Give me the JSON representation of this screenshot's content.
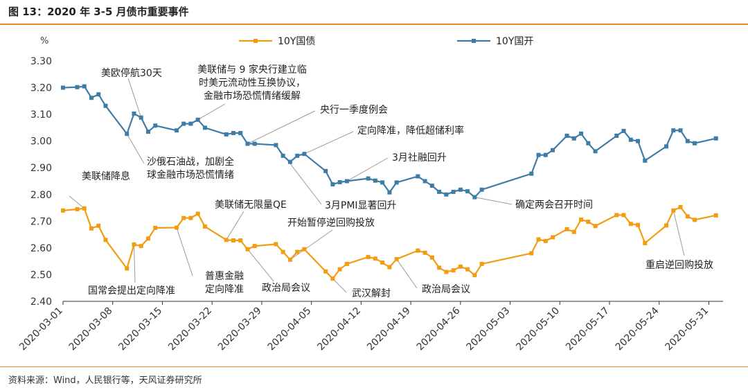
{
  "header": {
    "title": "图 13：2020 年 3-5 月债市重要事件"
  },
  "footer": {
    "source": "资料来源：Wind，人民银行等，天风证券研究所"
  },
  "chart_data": {
    "type": "line",
    "ylabel": "%",
    "ylim": [
      2.4,
      3.3
    ],
    "yticks": [
      "3.30",
      "3.20",
      "3.10",
      "3.00",
      "2.90",
      "2.80",
      "2.70",
      "2.60",
      "2.50",
      "2.40"
    ],
    "xlim": [
      "2020-03-01",
      "2020-06-02"
    ],
    "xticks": [
      "2020-03-01",
      "2020-03-08",
      "2020-03-15",
      "2020-03-22",
      "2020-03-29",
      "2020-04-05",
      "2020-04-12",
      "2020-04-19",
      "2020-04-26",
      "2020-05-03",
      "2020-05-10",
      "2020-05-17",
      "2020-05-24",
      "2020-05-31"
    ],
    "legend_position": "top",
    "series": [
      {
        "name": "10Y国债",
        "color": "#f39c12",
        "points": [
          [
            "2020-03-01",
            2.74
          ],
          [
            "2020-03-03",
            2.745
          ],
          [
            "2020-03-04",
            2.748
          ],
          [
            "2020-03-05",
            2.673
          ],
          [
            "2020-03-06",
            2.683
          ],
          [
            "2020-03-07",
            2.63
          ],
          [
            "2020-03-10",
            2.523
          ],
          [
            "2020-03-11",
            2.613
          ],
          [
            "2020-03-12",
            2.607
          ],
          [
            "2020-03-13",
            2.635
          ],
          [
            "2020-03-14",
            2.675
          ],
          [
            "2020-03-17",
            2.676
          ],
          [
            "2020-03-18",
            2.712
          ],
          [
            "2020-03-19",
            2.712
          ],
          [
            "2020-03-20",
            2.728
          ],
          [
            "2020-03-21",
            2.68
          ],
          [
            "2020-03-24",
            2.63
          ],
          [
            "2020-03-25",
            2.628
          ],
          [
            "2020-03-26",
            2.628
          ],
          [
            "2020-03-27",
            2.595
          ],
          [
            "2020-03-28",
            2.607
          ],
          [
            "2020-03-31",
            2.614
          ],
          [
            "2020-04-01",
            2.585
          ],
          [
            "2020-04-02",
            2.556
          ],
          [
            "2020-04-03",
            2.585
          ],
          [
            "2020-04-04",
            2.595
          ],
          [
            "2020-04-07",
            2.512
          ],
          [
            "2020-04-08",
            2.485
          ],
          [
            "2020-04-09",
            2.52
          ],
          [
            "2020-04-10",
            2.54
          ],
          [
            "2020-04-13",
            2.566
          ],
          [
            "2020-04-14",
            2.56
          ],
          [
            "2020-04-15",
            2.545
          ],
          [
            "2020-04-16",
            2.528
          ],
          [
            "2020-04-17",
            2.558
          ],
          [
            "2020-04-20",
            2.59
          ],
          [
            "2020-04-21",
            2.582
          ],
          [
            "2020-04-22",
            2.564
          ],
          [
            "2020-04-23",
            2.526
          ],
          [
            "2020-04-24",
            2.51
          ],
          [
            "2020-04-25",
            2.516
          ],
          [
            "2020-04-26",
            2.53
          ],
          [
            "2020-04-27",
            2.52
          ],
          [
            "2020-04-28",
            2.498
          ],
          [
            "2020-04-29",
            2.54
          ],
          [
            "2020-05-06",
            2.58
          ],
          [
            "2020-05-07",
            2.632
          ],
          [
            "2020-05-08",
            2.626
          ],
          [
            "2020-05-09",
            2.64
          ],
          [
            "2020-05-11",
            2.67
          ],
          [
            "2020-05-12",
            2.66
          ],
          [
            "2020-05-13",
            2.706
          ],
          [
            "2020-05-14",
            2.698
          ],
          [
            "2020-05-15",
            2.682
          ],
          [
            "2020-05-18",
            2.723
          ],
          [
            "2020-05-19",
            2.723
          ],
          [
            "2020-05-20",
            2.69
          ],
          [
            "2020-05-21",
            2.686
          ],
          [
            "2020-05-22",
            2.618
          ],
          [
            "2020-05-25",
            2.684
          ],
          [
            "2020-05-26",
            2.74
          ],
          [
            "2020-05-27",
            2.753
          ],
          [
            "2020-05-28",
            2.718
          ],
          [
            "2020-05-29",
            2.705
          ],
          [
            "2020-06-01",
            2.722
          ]
        ]
      },
      {
        "name": "10Y国开",
        "color": "#3d7ca6",
        "points": [
          [
            "2020-03-01",
            3.2
          ],
          [
            "2020-03-03",
            3.202
          ],
          [
            "2020-03-04",
            3.205
          ],
          [
            "2020-03-05",
            3.162
          ],
          [
            "2020-03-06",
            3.175
          ],
          [
            "2020-03-07",
            3.132
          ],
          [
            "2020-03-10",
            3.027
          ],
          [
            "2020-03-11",
            3.103
          ],
          [
            "2020-03-12",
            3.088
          ],
          [
            "2020-03-13",
            3.035
          ],
          [
            "2020-03-14",
            3.058
          ],
          [
            "2020-03-17",
            3.04
          ],
          [
            "2020-03-18",
            3.065
          ],
          [
            "2020-03-19",
            3.065
          ],
          [
            "2020-03-20",
            3.08
          ],
          [
            "2020-03-21",
            3.05
          ],
          [
            "2020-03-24",
            3.025
          ],
          [
            "2020-03-25",
            3.03
          ],
          [
            "2020-03-26",
            3.03
          ],
          [
            "2020-03-27",
            2.99
          ],
          [
            "2020-03-28",
            2.99
          ],
          [
            "2020-03-31",
            2.985
          ],
          [
            "2020-04-01",
            2.945
          ],
          [
            "2020-04-02",
            2.922
          ],
          [
            "2020-04-03",
            2.945
          ],
          [
            "2020-04-04",
            2.952
          ],
          [
            "2020-04-07",
            2.888
          ],
          [
            "2020-04-08",
            2.838
          ],
          [
            "2020-04-09",
            2.846
          ],
          [
            "2020-04-10",
            2.85
          ],
          [
            "2020-04-13",
            2.86
          ],
          [
            "2020-04-14",
            2.852
          ],
          [
            "2020-04-15",
            2.845
          ],
          [
            "2020-04-16",
            2.808
          ],
          [
            "2020-04-17",
            2.845
          ],
          [
            "2020-04-20",
            2.868
          ],
          [
            "2020-04-21",
            2.85
          ],
          [
            "2020-04-22",
            2.833
          ],
          [
            "2020-04-23",
            2.81
          ],
          [
            "2020-04-24",
            2.8
          ],
          [
            "2020-04-25",
            2.81
          ],
          [
            "2020-04-26",
            2.818
          ],
          [
            "2020-04-27",
            2.812
          ],
          [
            "2020-04-28",
            2.79
          ],
          [
            "2020-04-29",
            2.818
          ],
          [
            "2020-05-06",
            2.878
          ],
          [
            "2020-05-07",
            2.948
          ],
          [
            "2020-05-08",
            2.948
          ],
          [
            "2020-05-09",
            2.966
          ],
          [
            "2020-05-11",
            3.02
          ],
          [
            "2020-05-12",
            3.01
          ],
          [
            "2020-05-13",
            3.028
          ],
          [
            "2020-05-14",
            2.992
          ],
          [
            "2020-05-15",
            2.962
          ],
          [
            "2020-05-18",
            3.02
          ],
          [
            "2020-05-19",
            3.038
          ],
          [
            "2020-05-20",
            3.005
          ],
          [
            "2020-05-21",
            3.0
          ],
          [
            "2020-05-22",
            2.927
          ],
          [
            "2020-05-25",
            2.98
          ],
          [
            "2020-05-26",
            3.04
          ],
          [
            "2020-05-27",
            3.04
          ],
          [
            "2020-05-28",
            3.0
          ],
          [
            "2020-05-29",
            2.992
          ],
          [
            "2020-06-01",
            3.01
          ]
        ]
      }
    ],
    "annotations": [
      {
        "text": [
          "美欧停航30天"
        ],
        "at": [
          "2020-03-12",
          3.088
        ]
      },
      {
        "text": [
          "美联储与 9 家央行建立临",
          "时美元流动性互换协议，",
          "金融市场恐慌情绪缓解"
        ],
        "at": [
          "2020-03-20",
          3.08
        ]
      },
      {
        "text": [
          "央行一季度例会"
        ],
        "at": [
          "2020-03-27",
          2.99
        ]
      },
      {
        "text": [
          "定向降准，降低超储利率"
        ],
        "at": [
          "2020-04-04",
          2.952
        ]
      },
      {
        "text": [
          "3月社融回升"
        ],
        "at": [
          "2020-04-10",
          2.85
        ]
      },
      {
        "text": [
          "沙俄石油战，加剧全",
          "球金融市场恐慌情绪"
        ],
        "at": [
          "2020-03-10",
          3.027
        ]
      },
      {
        "text": [
          "美联储降息"
        ],
        "at": [
          "2020-03-04",
          2.748
        ]
      },
      {
        "text": [
          "3月PMI显著回升"
        ],
        "at": [
          "2020-03-31",
          2.985
        ]
      },
      {
        "text": [
          "确定两会召开时间"
        ],
        "at": [
          "2020-04-28",
          2.79
        ]
      },
      {
        "text": [
          "美联储无限量QE"
        ],
        "at": [
          "2020-03-24",
          2.63
        ]
      },
      {
        "text": [
          "开始暂停逆回购投放"
        ],
        "at": [
          "2020-04-02",
          2.556
        ]
      },
      {
        "text": [
          "国常会提出定向降准"
        ],
        "at": [
          "2020-03-11",
          2.613
        ]
      },
      {
        "text": [
          "普惠金融",
          "定向降准"
        ],
        "at": [
          "2020-03-17",
          2.676
        ]
      },
      {
        "text": [
          "政治局会议"
        ],
        "at": [
          "2020-03-27",
          2.595
        ]
      },
      {
        "text": [
          "武汉解封"
        ],
        "at": [
          "2020-04-08",
          2.485
        ]
      },
      {
        "text": [
          "政治局会议"
        ],
        "at": [
          "2020-04-17",
          2.558
        ]
      },
      {
        "text": [
          "重启逆回购投放"
        ],
        "at": [
          "2020-05-26",
          2.74
        ]
      }
    ]
  }
}
